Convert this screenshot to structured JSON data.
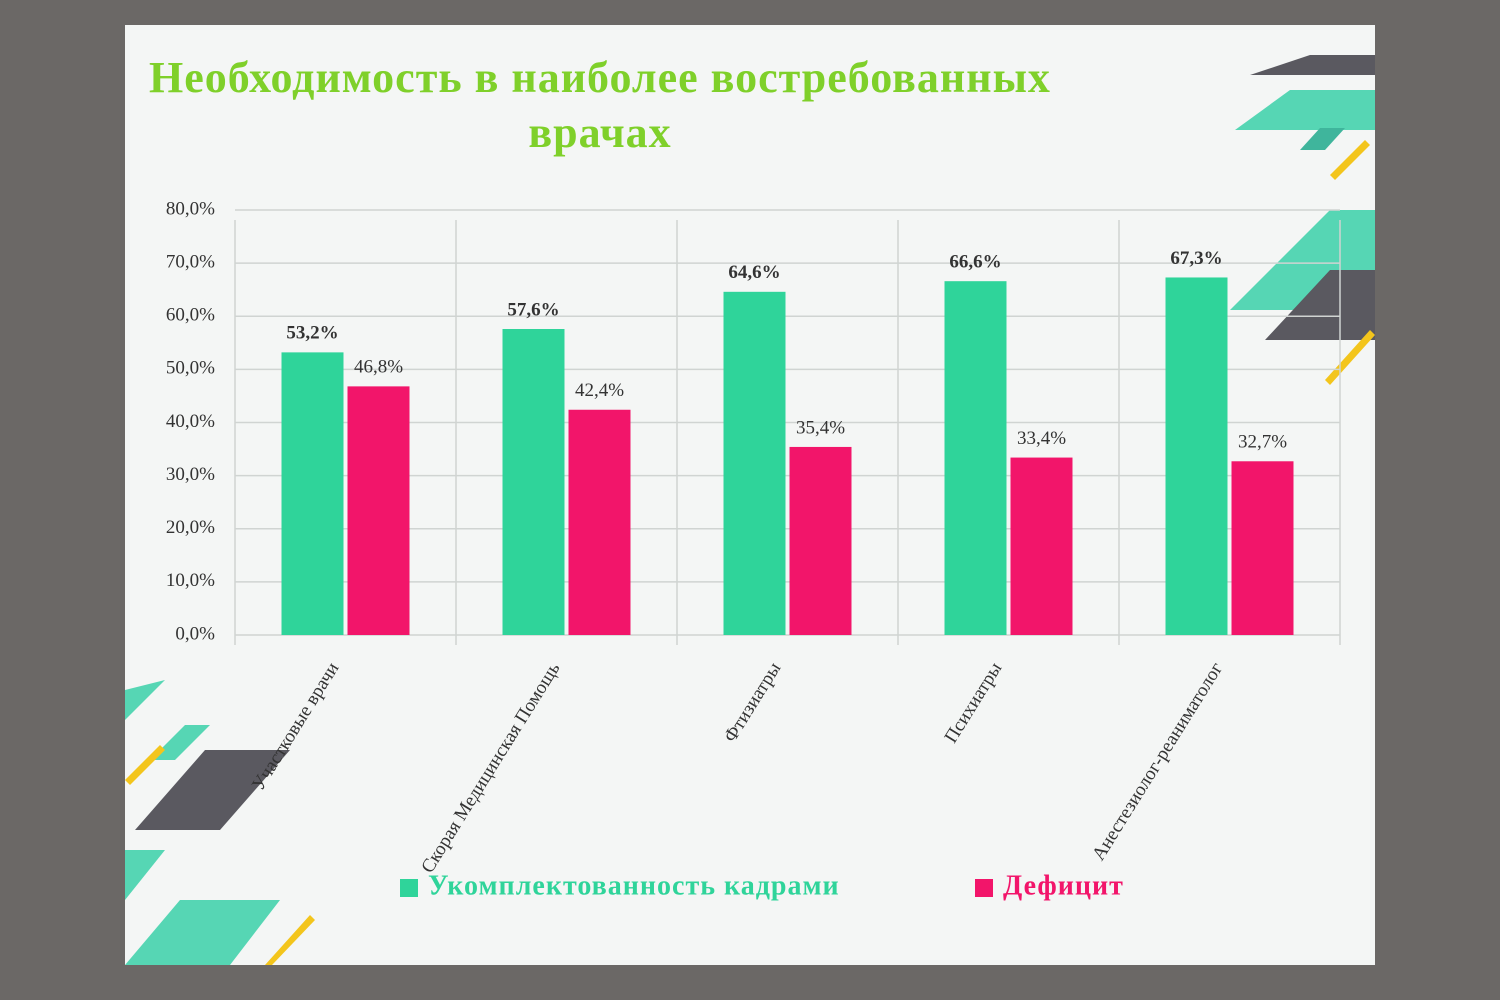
{
  "chart_data": {
    "type": "bar",
    "title": "Необходимость в наиболее востребованных врачах",
    "categories": [
      "Участковые врачи",
      "Скорая Медицинская Помощь",
      "Фтизиатры",
      "Психиатры",
      "Анестезиолог-реаниматолог"
    ],
    "series": [
      {
        "name": "Укомплектованность кадрами",
        "color": "#2fd49a",
        "values": [
          53.2,
          57.6,
          64.6,
          66.6,
          67.3
        ],
        "value_labels": [
          "53,2%",
          "57,6%",
          "64,6%",
          "66,6%",
          "67,3%"
        ]
      },
      {
        "name": "Дефицит",
        "color": "#f2156a",
        "values": [
          46.8,
          42.4,
          35.4,
          33.4,
          32.7
        ],
        "value_labels": [
          "46,8%",
          "42,4%",
          "35,4%",
          "33,4%",
          "32,7%"
        ]
      }
    ],
    "ylim": [
      0,
      80
    ],
    "yticks": [
      {
        "value": 0,
        "label": "0,0%"
      },
      {
        "value": 10,
        "label": "10,0%"
      },
      {
        "value": 20,
        "label": "20,0%"
      },
      {
        "value": 30,
        "label": "30,0%"
      },
      {
        "value": 40,
        "label": "40,0%"
      },
      {
        "value": 50,
        "label": "50,0%"
      },
      {
        "value": 60,
        "label": "60,0%"
      },
      {
        "value": 70,
        "label": "70,0%"
      },
      {
        "value": 80,
        "label": "80,0%"
      }
    ],
    "grid": true,
    "legend": "bottom"
  }
}
